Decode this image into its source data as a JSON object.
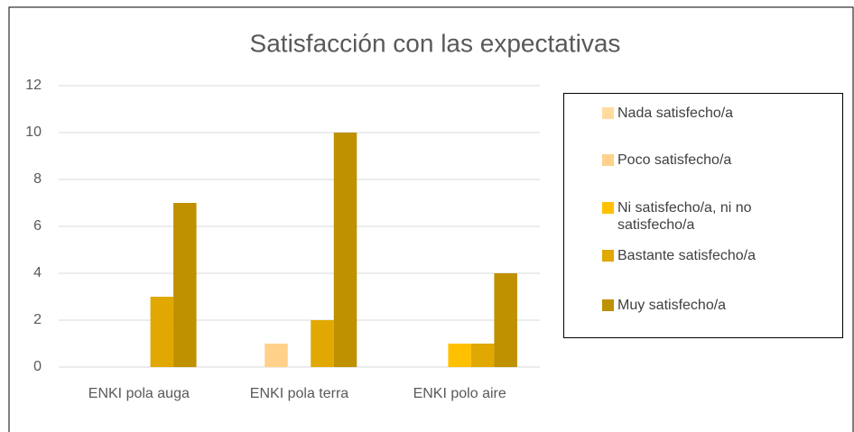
{
  "chart_data": {
    "type": "bar",
    "title": "Satisfacción con las expectativas",
    "categories": [
      "ENKI pola auga",
      "ENKI pola terra",
      "ENKI polo aire"
    ],
    "series": [
      {
        "name": "Nada satisfecho/a",
        "color": "#ffdc9e",
        "values": [
          0,
          0,
          0
        ]
      },
      {
        "name": "Poco satisfecho/a",
        "color": "#ffd18a",
        "values": [
          0,
          1,
          0
        ]
      },
      {
        "name": "Ni satisfecho/a, ni no satisfecho/a",
        "color": "#ffc000",
        "values": [
          0,
          0,
          1
        ]
      },
      {
        "name": "Bastante satisfecho/a",
        "color": "#e0a800",
        "values": [
          3,
          2,
          1
        ]
      },
      {
        "name": "Muy satisfecho/a",
        "color": "#bf9000",
        "values": [
          7,
          10,
          4
        ]
      }
    ],
    "ylim": [
      0,
      12
    ],
    "yticks": [
      0,
      2,
      4,
      6,
      8,
      10,
      12
    ],
    "grid": true,
    "legend": "right"
  }
}
